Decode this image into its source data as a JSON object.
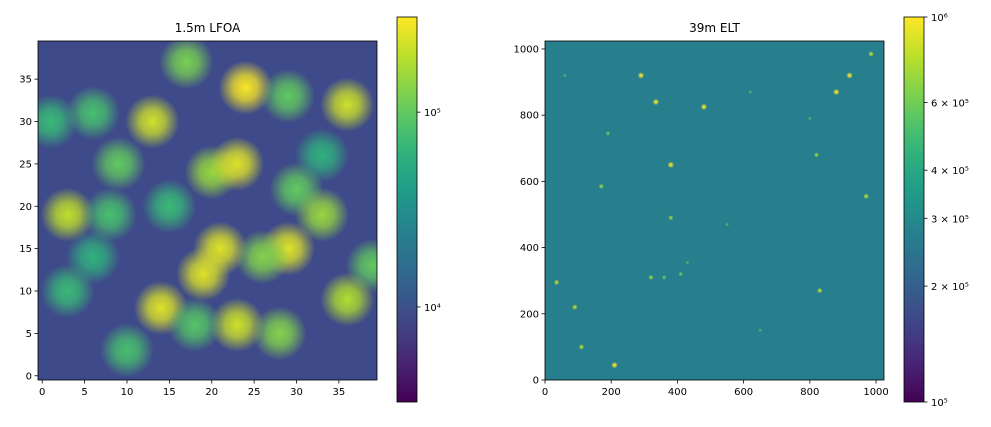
{
  "chart_data": [
    {
      "type": "image",
      "title": "1.5m LFOA",
      "colormap": "viridis",
      "color_scale": "log",
      "clim": [
        3250,
        308000
      ],
      "background": 9000,
      "xlim": [
        -0.5,
        39.5
      ],
      "ylim": [
        -0.5,
        39.5
      ],
      "xticks": [
        0,
        5,
        10,
        15,
        20,
        25,
        30,
        35
      ],
      "yticks": [
        0,
        5,
        10,
        15,
        20,
        25,
        30,
        35
      ],
      "cticks": [
        {
          "value": 10000,
          "label": "10⁴"
        },
        {
          "value": 100000,
          "label": "10⁵"
        }
      ],
      "x": [
        24,
        36,
        13,
        17,
        6,
        1,
        29,
        9,
        20,
        23,
        30,
        3,
        8,
        21,
        19,
        29,
        26,
        33,
        39,
        14,
        23,
        28,
        36,
        10,
        18,
        3,
        6,
        15,
        33
      ],
      "y": [
        34,
        32,
        30,
        37,
        31,
        30,
        33,
        25,
        24,
        25,
        22,
        19,
        19,
        15,
        12,
        15,
        14,
        19,
        13,
        8,
        6,
        5,
        9,
        3,
        6,
        10,
        14,
        20,
        26
      ],
      "values": [
        300000,
        220000,
        220000,
        120000,
        80000,
        70000,
        100000,
        100000,
        150000,
        250000,
        100000,
        200000,
        80000,
        250000,
        250000,
        250000,
        130000,
        150000,
        100000,
        250000,
        220000,
        130000,
        180000,
        80000,
        90000,
        70000,
        60000,
        70000,
        60000
      ]
    },
    {
      "type": "image",
      "title": "39m ELT",
      "colormap": "viridis",
      "color_scale": "log",
      "clim": [
        100000,
        1000000
      ],
      "background": 270000,
      "xlim": [
        0,
        1024
      ],
      "ylim": [
        0,
        1024
      ],
      "xticks": [
        0,
        200,
        400,
        600,
        800,
        1000
      ],
      "yticks": [
        0,
        200,
        400,
        600,
        800,
        1000
      ],
      "cticks": [
        {
          "value": 100000,
          "label": "10⁵"
        },
        {
          "value": 200000,
          "label": "2 × 10⁵"
        },
        {
          "value": 300000,
          "label": "3 × 10⁵"
        },
        {
          "value": 400000,
          "label": "4 × 10⁵"
        },
        {
          "value": 600000,
          "label": "6 × 10⁵"
        },
        {
          "value": 1000000,
          "label": "10⁶"
        }
      ],
      "x": [
        880,
        480,
        335,
        290,
        920,
        380,
        985,
        210,
        110,
        90,
        35,
        830,
        970,
        820,
        170,
        380,
        320,
        360,
        410,
        190,
        620,
        800,
        550,
        430,
        650,
        60
      ],
      "y": [
        870,
        825,
        840,
        920,
        920,
        650,
        985,
        45,
        100,
        220,
        295,
        270,
        555,
        680,
        585,
        490,
        310,
        310,
        320,
        745,
        870,
        790,
        470,
        355,
        150,
        920
      ],
      "values": [
        1000000,
        1000000,
        1000000,
        1000000,
        1000000,
        1000000,
        800000,
        1000000,
        800000,
        800000,
        800000,
        800000,
        800000,
        700000,
        700000,
        700000,
        700000,
        600000,
        600000,
        600000,
        500000,
        500000,
        500000,
        500000,
        500000,
        500000
      ]
    }
  ]
}
